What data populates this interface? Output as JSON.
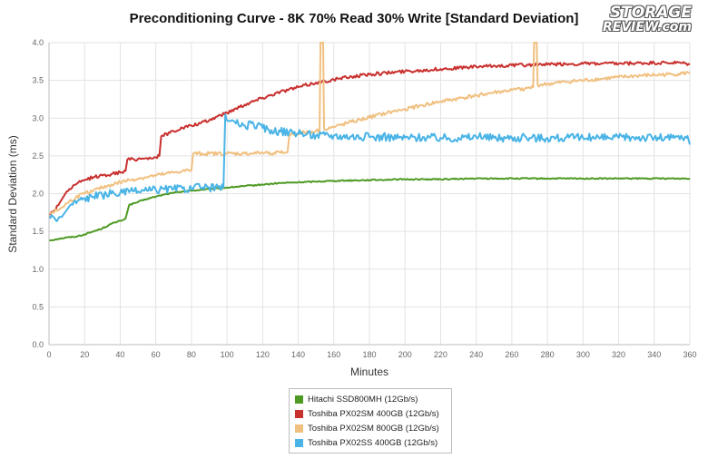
{
  "chart_data": {
    "type": "line",
    "title": "Preconditioning Curve - 8K 70% Read 30% Write [Standard Deviation]",
    "xlabel": "Minutes",
    "ylabel": "Standard Deviation (ms)",
    "xlim": [
      0,
      360
    ],
    "ylim": [
      0,
      4.0
    ],
    "xticks": [
      "0",
      "20",
      "40",
      "60",
      "80",
      "100",
      "120",
      "140",
      "160",
      "180",
      "200",
      "220",
      "240",
      "260",
      "280",
      "300",
      "320",
      "340",
      "360"
    ],
    "yticks": [
      "0.0",
      "0.5",
      "1.0",
      "1.5",
      "2.0",
      "2.5",
      "3.0",
      "3.5",
      "4.0"
    ],
    "grid": true,
    "legend_position": "bottom",
    "series": [
      {
        "name": "Hitachi SSD800MH (12Gb/s)",
        "color": "#4e9a24",
        "points": [
          [
            0,
            1.38
          ],
          [
            5,
            1.4
          ],
          [
            10,
            1.42
          ],
          [
            15,
            1.43
          ],
          [
            20,
            1.46
          ],
          [
            25,
            1.5
          ],
          [
            30,
            1.54
          ],
          [
            35,
            1.6
          ],
          [
            40,
            1.64
          ],
          [
            43,
            1.67
          ],
          [
            45,
            1.85
          ],
          [
            50,
            1.89
          ],
          [
            55,
            1.93
          ],
          [
            60,
            1.96
          ],
          [
            65,
            1.99
          ],
          [
            70,
            2.01
          ],
          [
            75,
            2.03
          ],
          [
            80,
            2.04
          ],
          [
            85,
            2.05
          ],
          [
            90,
            2.06
          ],
          [
            95,
            2.07
          ],
          [
            100,
            2.08
          ],
          [
            110,
            2.1
          ],
          [
            120,
            2.12
          ],
          [
            130,
            2.14
          ],
          [
            140,
            2.15
          ],
          [
            150,
            2.16
          ],
          [
            160,
            2.17
          ],
          [
            180,
            2.18
          ],
          [
            200,
            2.19
          ],
          [
            220,
            2.19
          ],
          [
            240,
            2.2
          ],
          [
            260,
            2.2
          ],
          [
            280,
            2.2
          ],
          [
            300,
            2.2
          ],
          [
            320,
            2.2
          ],
          [
            340,
            2.2
          ],
          [
            360,
            2.2
          ]
        ]
      },
      {
        "name": "Toshiba PX02SM 400GB (12Gb/s)",
        "color": "#c8302e",
        "points": [
          [
            0,
            1.72
          ],
          [
            3,
            1.78
          ],
          [
            6,
            1.88
          ],
          [
            10,
            2.03
          ],
          [
            15,
            2.12
          ],
          [
            20,
            2.18
          ],
          [
            25,
            2.22
          ],
          [
            30,
            2.24
          ],
          [
            35,
            2.26
          ],
          [
            40,
            2.28
          ],
          [
            43,
            2.3
          ],
          [
            44,
            2.45
          ],
          [
            50,
            2.46
          ],
          [
            55,
            2.47
          ],
          [
            60,
            2.48
          ],
          [
            62,
            2.5
          ],
          [
            63,
            2.76
          ],
          [
            70,
            2.83
          ],
          [
            75,
            2.87
          ],
          [
            80,
            2.9
          ],
          [
            85,
            2.93
          ],
          [
            90,
            2.97
          ],
          [
            95,
            3.03
          ],
          [
            100,
            3.07
          ],
          [
            105,
            3.13
          ],
          [
            110,
            3.18
          ],
          [
            120,
            3.27
          ],
          [
            130,
            3.35
          ],
          [
            140,
            3.41
          ],
          [
            150,
            3.47
          ],
          [
            160,
            3.51
          ],
          [
            170,
            3.55
          ],
          [
            180,
            3.58
          ],
          [
            200,
            3.62
          ],
          [
            220,
            3.65
          ],
          [
            240,
            3.68
          ],
          [
            260,
            3.7
          ],
          [
            280,
            3.71
          ],
          [
            300,
            3.72
          ],
          [
            320,
            3.72
          ],
          [
            340,
            3.73
          ],
          [
            355,
            3.73
          ],
          [
            360,
            3.71
          ]
        ]
      },
      {
        "name": "Toshiba PX02SM 800GB (12Gb/s)",
        "color": "#f0c080",
        "points": [
          [
            0,
            1.74
          ],
          [
            5,
            1.78
          ],
          [
            10,
            1.87
          ],
          [
            15,
            1.95
          ],
          [
            20,
            2.0
          ],
          [
            25,
            2.04
          ],
          [
            30,
            2.08
          ],
          [
            35,
            2.12
          ],
          [
            40,
            2.15
          ],
          [
            45,
            2.18
          ],
          [
            50,
            2.2
          ],
          [
            55,
            2.22
          ],
          [
            60,
            2.24
          ],
          [
            65,
            2.26
          ],
          [
            70,
            2.28
          ],
          [
            75,
            2.3
          ],
          [
            80,
            2.31
          ],
          [
            81,
            2.53
          ],
          [
            90,
            2.53
          ],
          [
            100,
            2.53
          ],
          [
            110,
            2.53
          ],
          [
            120,
            2.54
          ],
          [
            130,
            2.54
          ],
          [
            134,
            2.55
          ],
          [
            135,
            2.78
          ],
          [
            140,
            2.8
          ],
          [
            150,
            2.83
          ],
          [
            152,
            2.84
          ],
          [
            152.5,
            4.0
          ],
          [
            154,
            4.0
          ],
          [
            154.5,
            2.86
          ],
          [
            160,
            2.88
          ],
          [
            170,
            2.95
          ],
          [
            180,
            3.01
          ],
          [
            190,
            3.07
          ],
          [
            200,
            3.12
          ],
          [
            210,
            3.17
          ],
          [
            220,
            3.22
          ],
          [
            230,
            3.26
          ],
          [
            240,
            3.3
          ],
          [
            250,
            3.34
          ],
          [
            260,
            3.37
          ],
          [
            270,
            3.4
          ],
          [
            272,
            3.41
          ],
          [
            272.5,
            4.0
          ],
          [
            274,
            4.0
          ],
          [
            274.5,
            3.44
          ],
          [
            280,
            3.45
          ],
          [
            290,
            3.48
          ],
          [
            300,
            3.5
          ],
          [
            310,
            3.52
          ],
          [
            320,
            3.54
          ],
          [
            330,
            3.56
          ],
          [
            340,
            3.57
          ],
          [
            350,
            3.58
          ],
          [
            360,
            3.6
          ]
        ]
      },
      {
        "name": "Toshiba PX02SS 400GB (12Gb/s)",
        "color": "#4ab4e6",
        "points": [
          [
            0,
            1.7
          ],
          [
            3,
            1.68
          ],
          [
            5,
            1.66
          ],
          [
            8,
            1.72
          ],
          [
            12,
            1.85
          ],
          [
            16,
            1.9
          ],
          [
            20,
            1.94
          ],
          [
            25,
            1.96
          ],
          [
            30,
            1.98
          ],
          [
            35,
            2.0
          ],
          [
            40,
            2.01
          ],
          [
            45,
            2.02
          ],
          [
            50,
            2.03
          ],
          [
            55,
            2.04
          ],
          [
            60,
            2.05
          ],
          [
            65,
            2.06
          ],
          [
            70,
            2.06
          ],
          [
            75,
            2.07
          ],
          [
            80,
            2.07
          ],
          [
            85,
            2.08
          ],
          [
            90,
            2.08
          ],
          [
            95,
            2.08
          ],
          [
            98,
            2.08
          ],
          [
            99,
            3.05
          ],
          [
            102,
            2.96
          ],
          [
            105,
            2.93
          ],
          [
            110,
            2.9
          ],
          [
            115,
            2.92
          ],
          [
            120,
            2.87
          ],
          [
            125,
            2.84
          ],
          [
            130,
            2.82
          ],
          [
            135,
            2.82
          ],
          [
            140,
            2.79
          ],
          [
            145,
            2.79
          ],
          [
            150,
            2.77
          ],
          [
            155,
            2.78
          ],
          [
            160,
            2.77
          ],
          [
            170,
            2.76
          ],
          [
            180,
            2.75
          ],
          [
            190,
            2.75
          ],
          [
            200,
            2.74
          ],
          [
            210,
            2.75
          ],
          [
            220,
            2.74
          ],
          [
            230,
            2.74
          ],
          [
            240,
            2.75
          ],
          [
            250,
            2.74
          ],
          [
            260,
            2.74
          ],
          [
            270,
            2.74
          ],
          [
            280,
            2.74
          ],
          [
            290,
            2.74
          ],
          [
            300,
            2.74
          ],
          [
            310,
            2.74
          ],
          [
            320,
            2.74
          ],
          [
            330,
            2.75
          ],
          [
            340,
            2.74
          ],
          [
            350,
            2.74
          ],
          [
            358,
            2.74
          ],
          [
            360,
            2.65
          ]
        ]
      }
    ]
  },
  "logo": {
    "line1": "STORAGE",
    "line2": "REVIEW.com"
  }
}
